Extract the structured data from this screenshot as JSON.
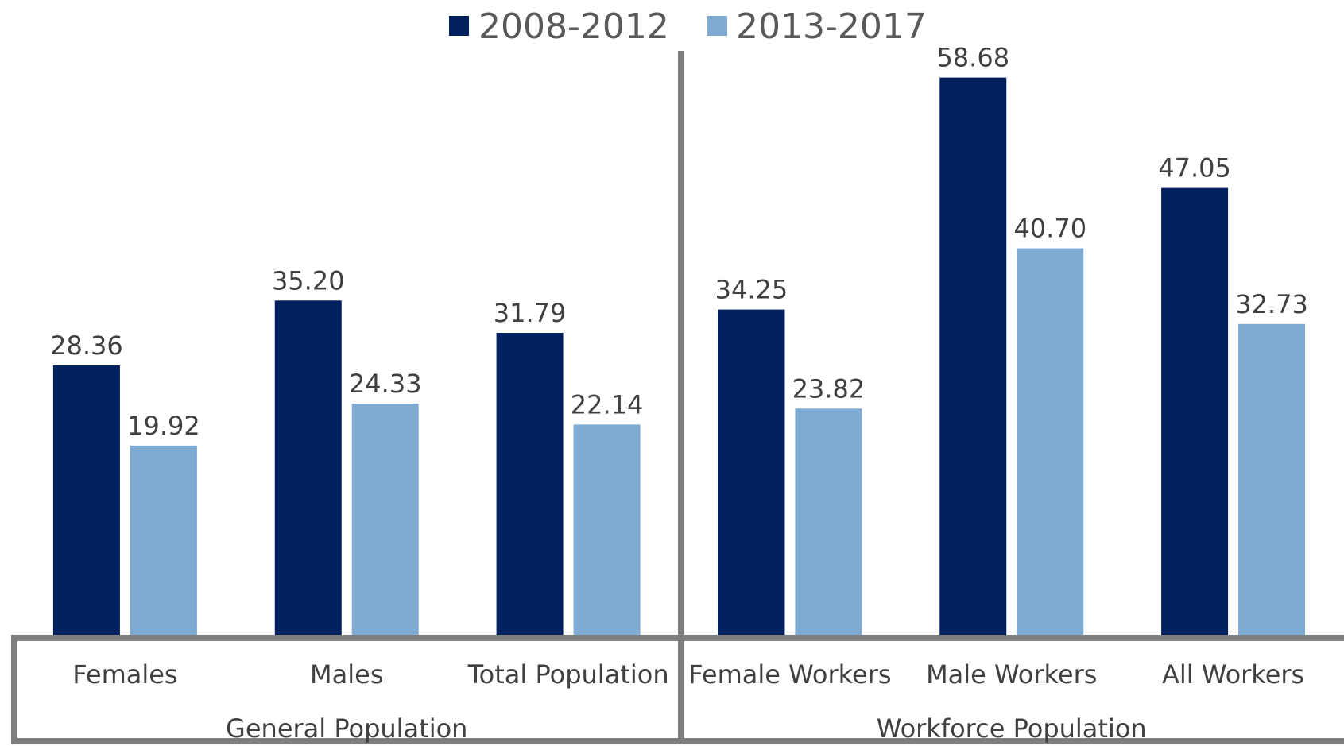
{
  "chart_data": {
    "type": "bar",
    "title": "",
    "xlabel": "",
    "ylabel": "",
    "ylim": [
      0,
      63.5
    ],
    "legend_position": "top-center",
    "grid": false,
    "groups": [
      {
        "name": "General Population",
        "categories": [
          "Females",
          "Males",
          "Total Population"
        ]
      },
      {
        "name": "Workforce Population",
        "categories": [
          "Female Workers",
          "Male Workers",
          "All Workers"
        ]
      }
    ],
    "categories": [
      "Females",
      "Males",
      "Total Population",
      "Female Workers",
      "Male Workers",
      "All Workers"
    ],
    "series": [
      {
        "name": "2008-2012",
        "color": "#002060",
        "values": [
          28.36,
          35.2,
          31.79,
          34.25,
          58.68,
          47.05
        ],
        "labels": [
          "28.36",
          "35.20",
          "31.79",
          "34.25",
          "58.68",
          "47.05"
        ]
      },
      {
        "name": "2013-2017",
        "color": "#7fabd2",
        "values": [
          19.92,
          24.33,
          22.14,
          23.82,
          40.7,
          32.73
        ],
        "labels": [
          "19.92",
          "24.33",
          "22.14",
          "23.82",
          "40.70",
          "32.73"
        ]
      }
    ],
    "divider_color": "#7f7f7f"
  }
}
